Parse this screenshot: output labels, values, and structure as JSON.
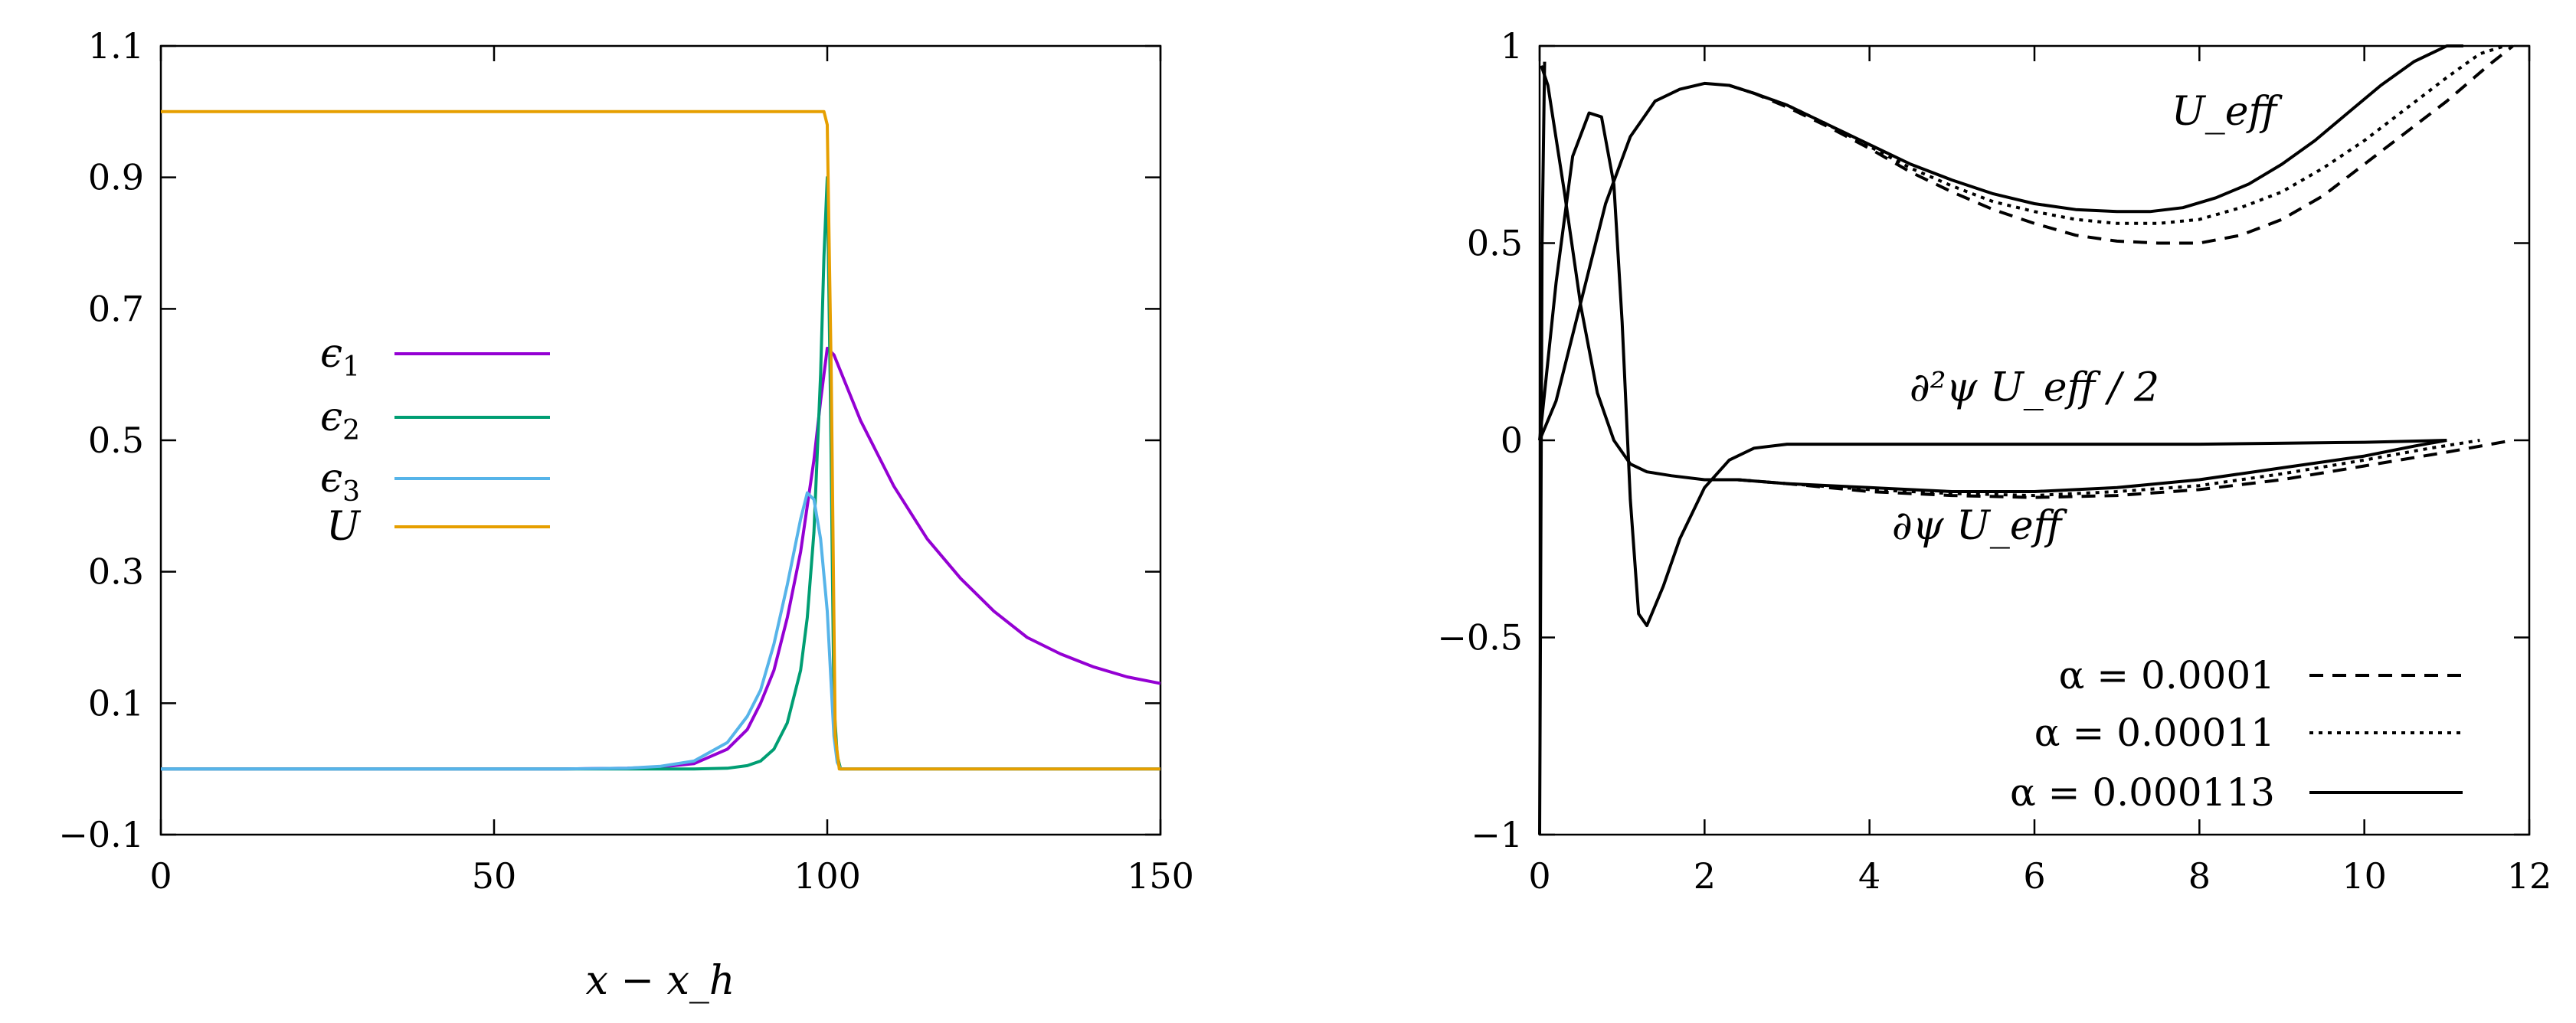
{
  "chart_data": [
    {
      "type": "line",
      "xlabel": "x − x_h",
      "ylabel": "",
      "xlim": [
        0,
        150
      ],
      "ylim": [
        -0.1,
        1.1
      ],
      "x_ticks": [
        "0",
        "50",
        "100",
        "150"
      ],
      "y_ticks": [
        "−0.1",
        "0.1",
        "0.3",
        "0.5",
        "0.7",
        "0.9",
        "1.1"
      ],
      "x_tick_values": [
        0,
        50,
        100,
        150
      ],
      "y_tick_values": [
        -0.1,
        0.1,
        0.3,
        0.5,
        0.7,
        0.9,
        1.1
      ],
      "legend_placement": "left-middle",
      "grid": false,
      "series": [
        {
          "name": "ε1",
          "color": "#9400D3",
          "x": [
            0,
            60,
            70,
            75,
            80,
            85,
            88,
            90,
            92,
            94,
            96,
            98,
            99,
            100,
            101,
            105,
            110,
            115,
            120,
            125,
            130,
            135,
            140,
            145,
            150
          ],
          "y": [
            0,
            0,
            0.001,
            0.003,
            0.008,
            0.03,
            0.06,
            0.1,
            0.15,
            0.23,
            0.33,
            0.47,
            0.56,
            0.64,
            0.63,
            0.53,
            0.43,
            0.35,
            0.29,
            0.24,
            0.2,
            0.175,
            0.155,
            0.14,
            0.13
          ]
        },
        {
          "name": "ε2",
          "color": "#009E73",
          "x": [
            0,
            80,
            85,
            88,
            90,
            92,
            94,
            96,
            97,
            98,
            99,
            99.5,
            100,
            100.5,
            101,
            101.5,
            102,
            150
          ],
          "y": [
            0,
            0,
            0.001,
            0.005,
            0.012,
            0.03,
            0.07,
            0.15,
            0.23,
            0.36,
            0.6,
            0.78,
            0.9,
            0.55,
            0.1,
            0.02,
            0,
            0
          ]
        },
        {
          "name": "ε3",
          "color": "#56B4E9",
          "x": [
            0,
            60,
            70,
            75,
            80,
            85,
            88,
            90,
            92,
            94,
            96,
            97,
            98,
            99,
            100,
            101,
            101.5,
            102,
            150
          ],
          "y": [
            0,
            0,
            0.001,
            0.004,
            0.012,
            0.04,
            0.08,
            0.12,
            0.19,
            0.28,
            0.38,
            0.42,
            0.41,
            0.35,
            0.24,
            0.05,
            0.01,
            0,
            0
          ]
        },
        {
          "name": "U",
          "color": "#E69F00",
          "x": [
            0,
            99.5,
            100,
            100.6,
            101.2,
            101.8,
            150
          ],
          "y": [
            1,
            1,
            0.98,
            0.6,
            0.05,
            0,
            0
          ]
        }
      ],
      "legend": [
        "ϵ",
        "ϵ",
        "ϵ",
        "U"
      ],
      "legend_subscripts": [
        "1",
        "2",
        "3",
        ""
      ]
    },
    {
      "type": "line",
      "xlabel": "",
      "ylabel": "",
      "xlim": [
        0,
        12
      ],
      "ylim": [
        -1,
        1
      ],
      "x_ticks": [
        "0",
        "2",
        "4",
        "6",
        "8",
        "10",
        "12"
      ],
      "y_ticks": [
        "−1",
        "−0.5",
        "0",
        "0.5",
        "1"
      ],
      "x_tick_values": [
        0,
        2,
        4,
        6,
        8,
        10,
        12
      ],
      "y_tick_values": [
        -1,
        -0.5,
        0,
        0.5,
        1
      ],
      "legend_placement": "bottom-right",
      "grid": false,
      "annotations": [
        {
          "text": "U_eff",
          "at": [
            8.3,
            0.8
          ]
        },
        {
          "text": "∂²ψ U_eff / 2",
          "at": [
            6.0,
            0.1
          ]
        },
        {
          "text": "∂ψ U_eff",
          "at": [
            5.3,
            -0.25
          ]
        }
      ],
      "legend": [
        "α = 0.0001",
        "α = 0.00011",
        "α = 0.000113"
      ],
      "series": [
        {
          "name": "α = 0.000113",
          "dash": "solid",
          "curves": [
            {
              "x": [
                0,
                0.2,
                0.5,
                0.8,
                1.1,
                1.4,
                1.7,
                2.0,
                2.3,
                2.6,
                3.0,
                3.5,
                4.0,
                4.5,
                5.0,
                5.5,
                6.0,
                6.5,
                7.0,
                7.4,
                7.8,
                8.2,
                8.6,
                9.0,
                9.4,
                9.8,
                10.2,
                10.6,
                11.0,
                11.2
              ],
              "y": [
                0,
                0.1,
                0.35,
                0.6,
                0.77,
                0.86,
                0.89,
                0.905,
                0.9,
                0.88,
                0.85,
                0.8,
                0.75,
                0.7,
                0.66,
                0.625,
                0.6,
                0.585,
                0.58,
                0.58,
                0.59,
                0.615,
                0.65,
                0.7,
                0.76,
                0.83,
                0.9,
                0.96,
                1.0,
                1.0
              ]
            },
            {
              "x": [
                0.02,
                0.1,
                0.3,
                0.5,
                0.7,
                0.9,
                1.1,
                1.3,
                1.6,
                2.0,
                2.4,
                3.0,
                4.0,
                5.0,
                6.0,
                7.0,
                8.0,
                9.0,
                10.0,
                10.6,
                11.0
              ],
              "y": [
                0.95,
                0.9,
                0.63,
                0.34,
                0.12,
                0.0,
                -0.06,
                -0.08,
                -0.09,
                -0.1,
                -0.1,
                -0.11,
                -0.12,
                -0.13,
                -0.13,
                -0.12,
                -0.1,
                -0.07,
                -0.04,
                -0.015,
                0
              ]
            },
            {
              "x": [
                0,
                0.2,
                0.4,
                0.6,
                0.75,
                0.9,
                1.0,
                1.1,
                1.2,
                1.3,
                1.5,
                1.7,
                2.0,
                2.3,
                2.6,
                3.0,
                4.0,
                6.0,
                8.0,
                10.0,
                11.0
              ],
              "y": [
                0,
                0.4,
                0.72,
                0.83,
                0.82,
                0.65,
                0.3,
                -0.15,
                -0.44,
                -0.47,
                -0.37,
                -0.25,
                -0.12,
                -0.05,
                -0.02,
                -0.01,
                -0.01,
                -0.01,
                -0.01,
                -0.005,
                0
              ]
            },
            {
              "x": [
                0,
                0.03,
                0.06
              ],
              "y": [
                -1,
                0.5,
                0.96
              ]
            }
          ]
        },
        {
          "name": "α = 0.00011",
          "dash": "dotted",
          "curves": [
            {
              "x": [
                2.3,
                2.6,
                3.0,
                3.5,
                4.0,
                4.5,
                5.0,
                5.5,
                6.0,
                6.5,
                7.0,
                7.5,
                8.0,
                8.5,
                9.0,
                9.5,
                10.0,
                10.5,
                11.0,
                11.4,
                11.7
              ],
              "y": [
                0.9,
                0.88,
                0.85,
                0.8,
                0.745,
                0.69,
                0.645,
                0.605,
                0.58,
                0.56,
                0.55,
                0.55,
                0.56,
                0.59,
                0.63,
                0.69,
                0.76,
                0.84,
                0.92,
                0.98,
                1.0
              ]
            },
            {
              "x": [
                2.4,
                3.0,
                4.0,
                5.0,
                6.0,
                7.0,
                8.0,
                9.0,
                10.0,
                10.8,
                11.4
              ],
              "y": [
                -0.1,
                -0.11,
                -0.125,
                -0.135,
                -0.14,
                -0.13,
                -0.115,
                -0.085,
                -0.05,
                -0.02,
                0
              ]
            }
          ]
        },
        {
          "name": "α = 0.0001",
          "dash": "dashed",
          "curves": [
            {
              "x": [
                2.3,
                2.6,
                3.0,
                3.5,
                4.0,
                4.5,
                5.0,
                5.5,
                6.0,
                6.5,
                7.0,
                7.5,
                8.0,
                8.5,
                9.0,
                9.5,
                10.0,
                10.5,
                11.0,
                11.5,
                11.8
              ],
              "y": [
                0.9,
                0.88,
                0.845,
                0.795,
                0.74,
                0.68,
                0.63,
                0.585,
                0.55,
                0.52,
                0.505,
                0.5,
                0.5,
                0.52,
                0.56,
                0.62,
                0.7,
                0.78,
                0.86,
                0.95,
                1.0
              ]
            },
            {
              "x": [
                2.4,
                3.0,
                4.0,
                5.0,
                6.0,
                7.0,
                8.0,
                9.0,
                10.0,
                11.0,
                11.8
              ],
              "y": [
                -0.1,
                -0.11,
                -0.13,
                -0.14,
                -0.145,
                -0.14,
                -0.125,
                -0.1,
                -0.065,
                -0.03,
                0
              ]
            }
          ]
        }
      ]
    }
  ]
}
